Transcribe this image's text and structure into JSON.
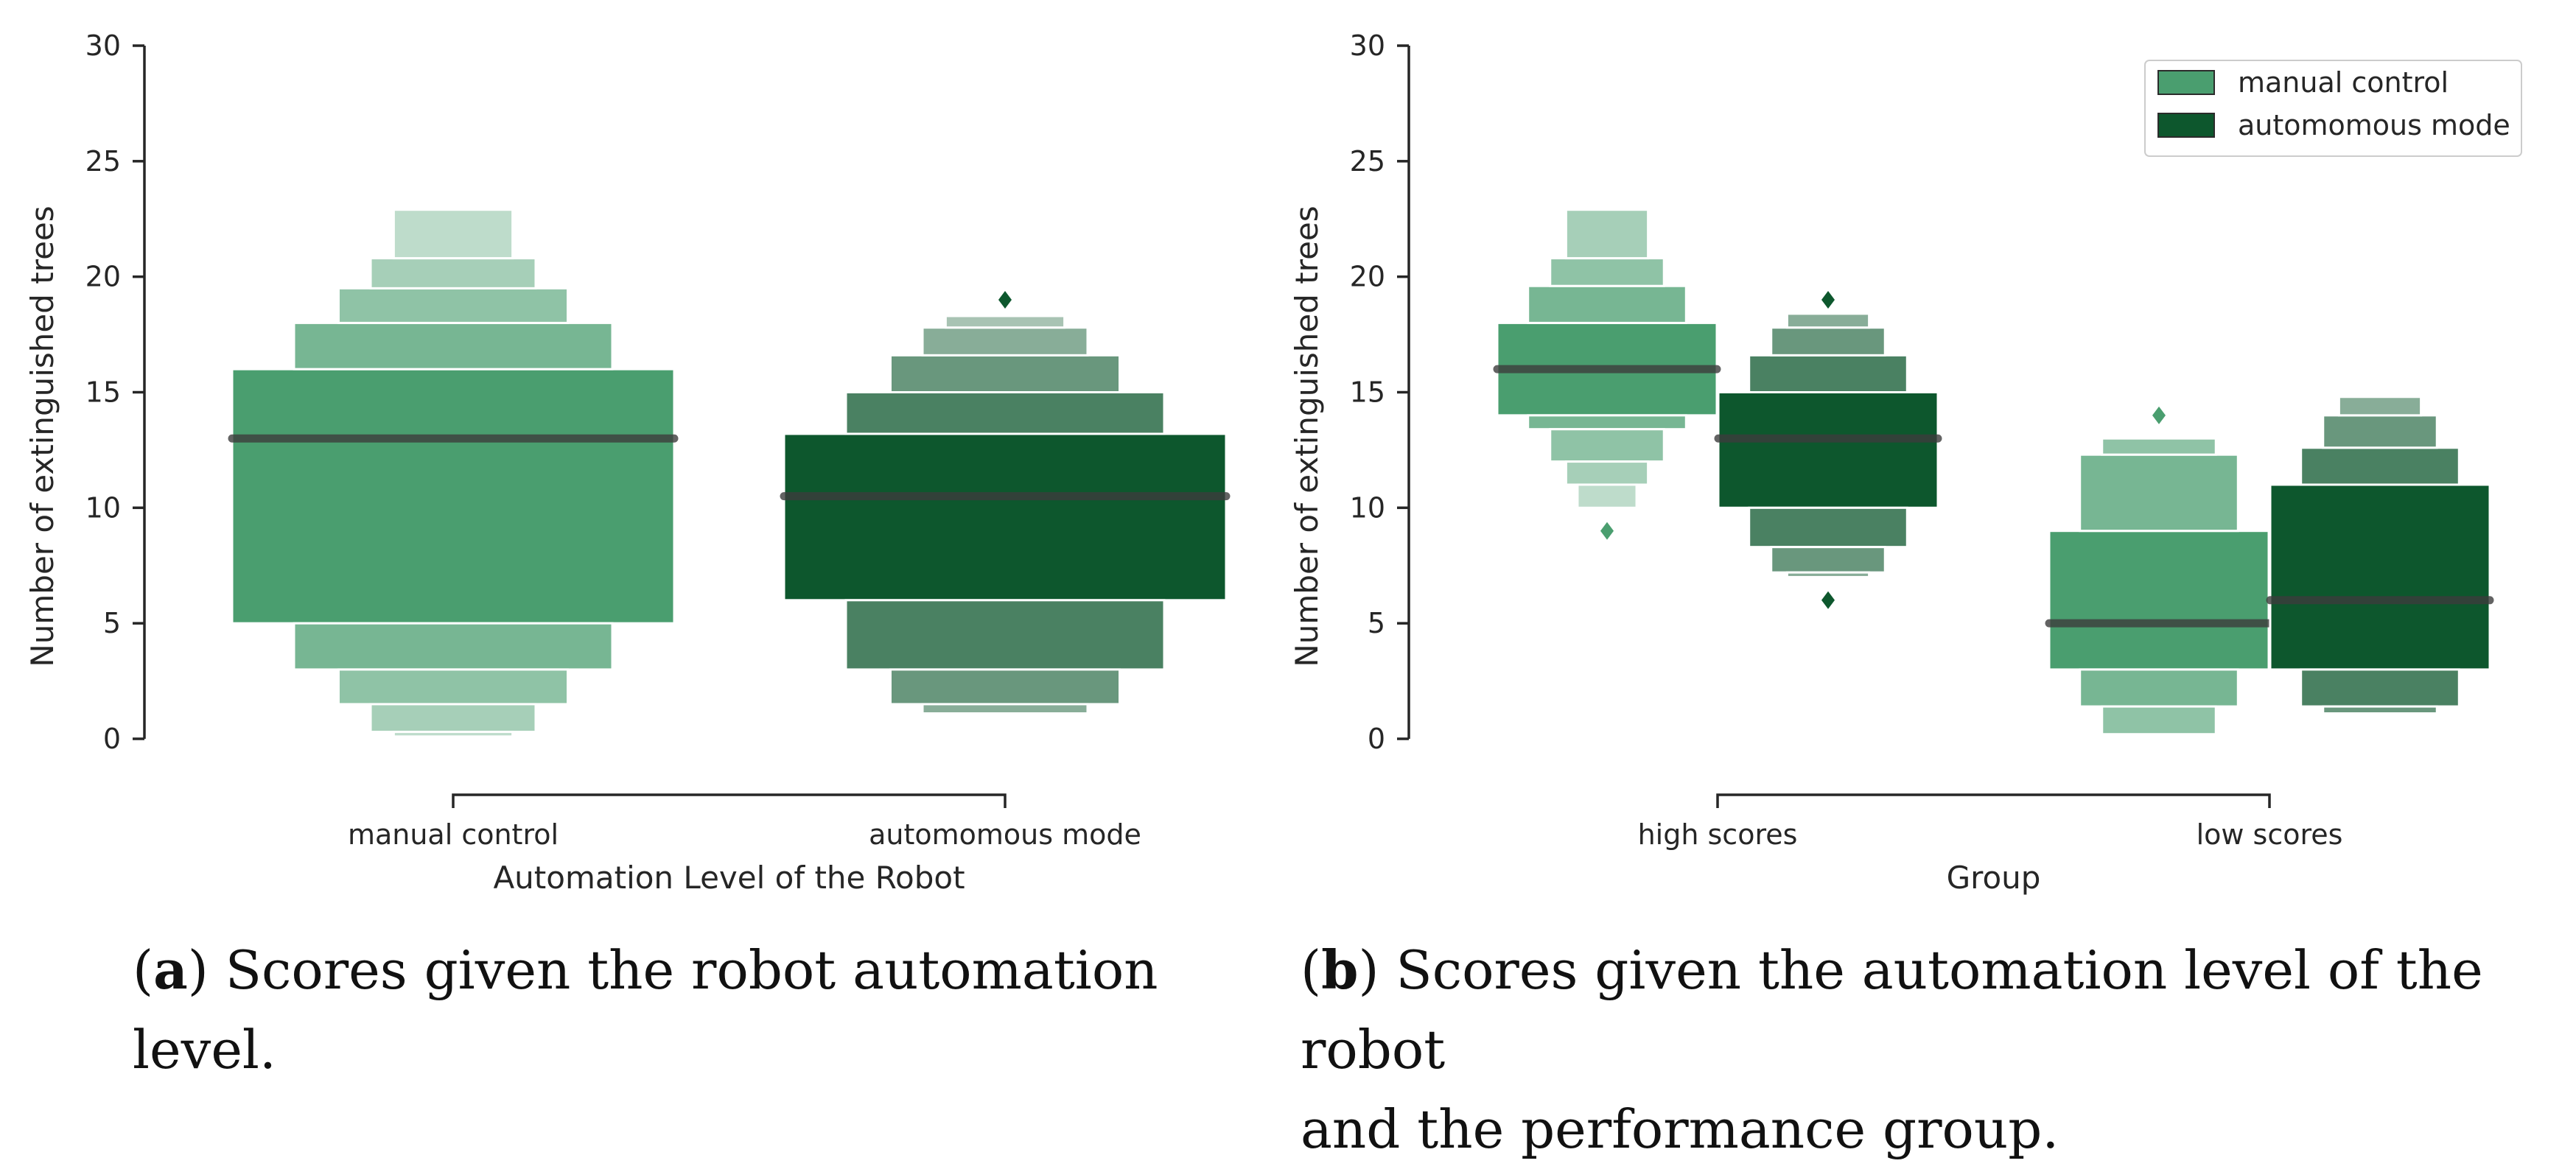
{
  "chart_data": [
    {
      "type": "boxen",
      "panel": "a",
      "xlabel": "Automation Level of the Robot",
      "ylabel": "Number of extinguished trees",
      "ylim": [
        0,
        30
      ],
      "yticks": [
        "0",
        "5",
        "10",
        "15",
        "20",
        "25",
        "30"
      ],
      "categories": [
        "manual control",
        "automomous mode"
      ],
      "series": [
        {
          "name": "manual control",
          "color": "#4a9e6f",
          "boxes": [
            {
              "group": "manual control",
              "median": 13,
              "levels": [
                [
                  5,
                  16
                ],
                [
                  3,
                  18
                ],
                [
                  1.5,
                  19.5
                ],
                [
                  0.3,
                  20.8
                ],
                [
                  0.1,
                  22.9
                ]
              ]
            }
          ],
          "outliers": []
        },
        {
          "name": "automomous mode",
          "color": "#0d572d",
          "boxes": [
            {
              "group": "automomous mode",
              "median": 10.5,
              "levels": [
                [
                  6,
                  13.2
                ],
                [
                  3,
                  15
                ],
                [
                  1.5,
                  16.6
                ],
                [
                  1.1,
                  17.8
                ],
                [
                  1.1,
                  18.3
                ]
              ]
            }
          ],
          "outliers": [
            {
              "group": "automomous mode",
              "value": 19
            }
          ]
        }
      ]
    },
    {
      "type": "boxen",
      "panel": "b",
      "xlabel": "Group",
      "ylabel": "Number of extinguished trees",
      "ylim": [
        0,
        30
      ],
      "yticks": [
        "0",
        "5",
        "10",
        "15",
        "20",
        "25",
        "30"
      ],
      "categories": [
        "high scores",
        "low scores"
      ],
      "legend": {
        "position": "top-right",
        "entries": [
          "manual control",
          "automomous mode"
        ]
      },
      "series": [
        {
          "name": "manual control",
          "color": "#4a9e6f",
          "boxes": [
            {
              "group": "high scores",
              "median": 16,
              "levels": [
                [
                  14,
                  18
                ],
                [
                  13.4,
                  19.6
                ],
                [
                  12,
                  20.8
                ],
                [
                  11,
                  22.9
                ],
                [
                  10,
                  22.9
                ]
              ]
            },
            {
              "group": "low scores",
              "median": 5,
              "levels": [
                [
                  3,
                  9
                ],
                [
                  1.4,
                  12.3
                ],
                [
                  0.2,
                  13
                ]
              ]
            }
          ],
          "outliers": [
            {
              "group": "high scores",
              "value": 9
            },
            {
              "group": "low scores",
              "value": 14
            }
          ]
        },
        {
          "name": "automomous mode",
          "color": "#0d572d",
          "boxes": [
            {
              "group": "high scores",
              "median": 13,
              "levels": [
                [
                  10,
                  15
                ],
                [
                  8.3,
                  16.6
                ],
                [
                  7.2,
                  17.8
                ],
                [
                  7,
                  18.4
                ]
              ]
            },
            {
              "group": "low scores",
              "median": 6,
              "levels": [
                [
                  3,
                  11
                ],
                [
                  1.4,
                  12.6
                ],
                [
                  1.1,
                  14
                ],
                [
                  1.1,
                  14.8
                ]
              ]
            }
          ],
          "outliers": [
            {
              "group": "high scores",
              "value": 19
            },
            {
              "group": "high scores",
              "value": 6
            }
          ]
        }
      ]
    }
  ],
  "captions": {
    "a": {
      "letter": "a",
      "text": " Scores given the robot automation level."
    },
    "b": {
      "letter": "b",
      "line1": " Scores given the automation level of the robot",
      "line2": "and the performance group."
    }
  }
}
